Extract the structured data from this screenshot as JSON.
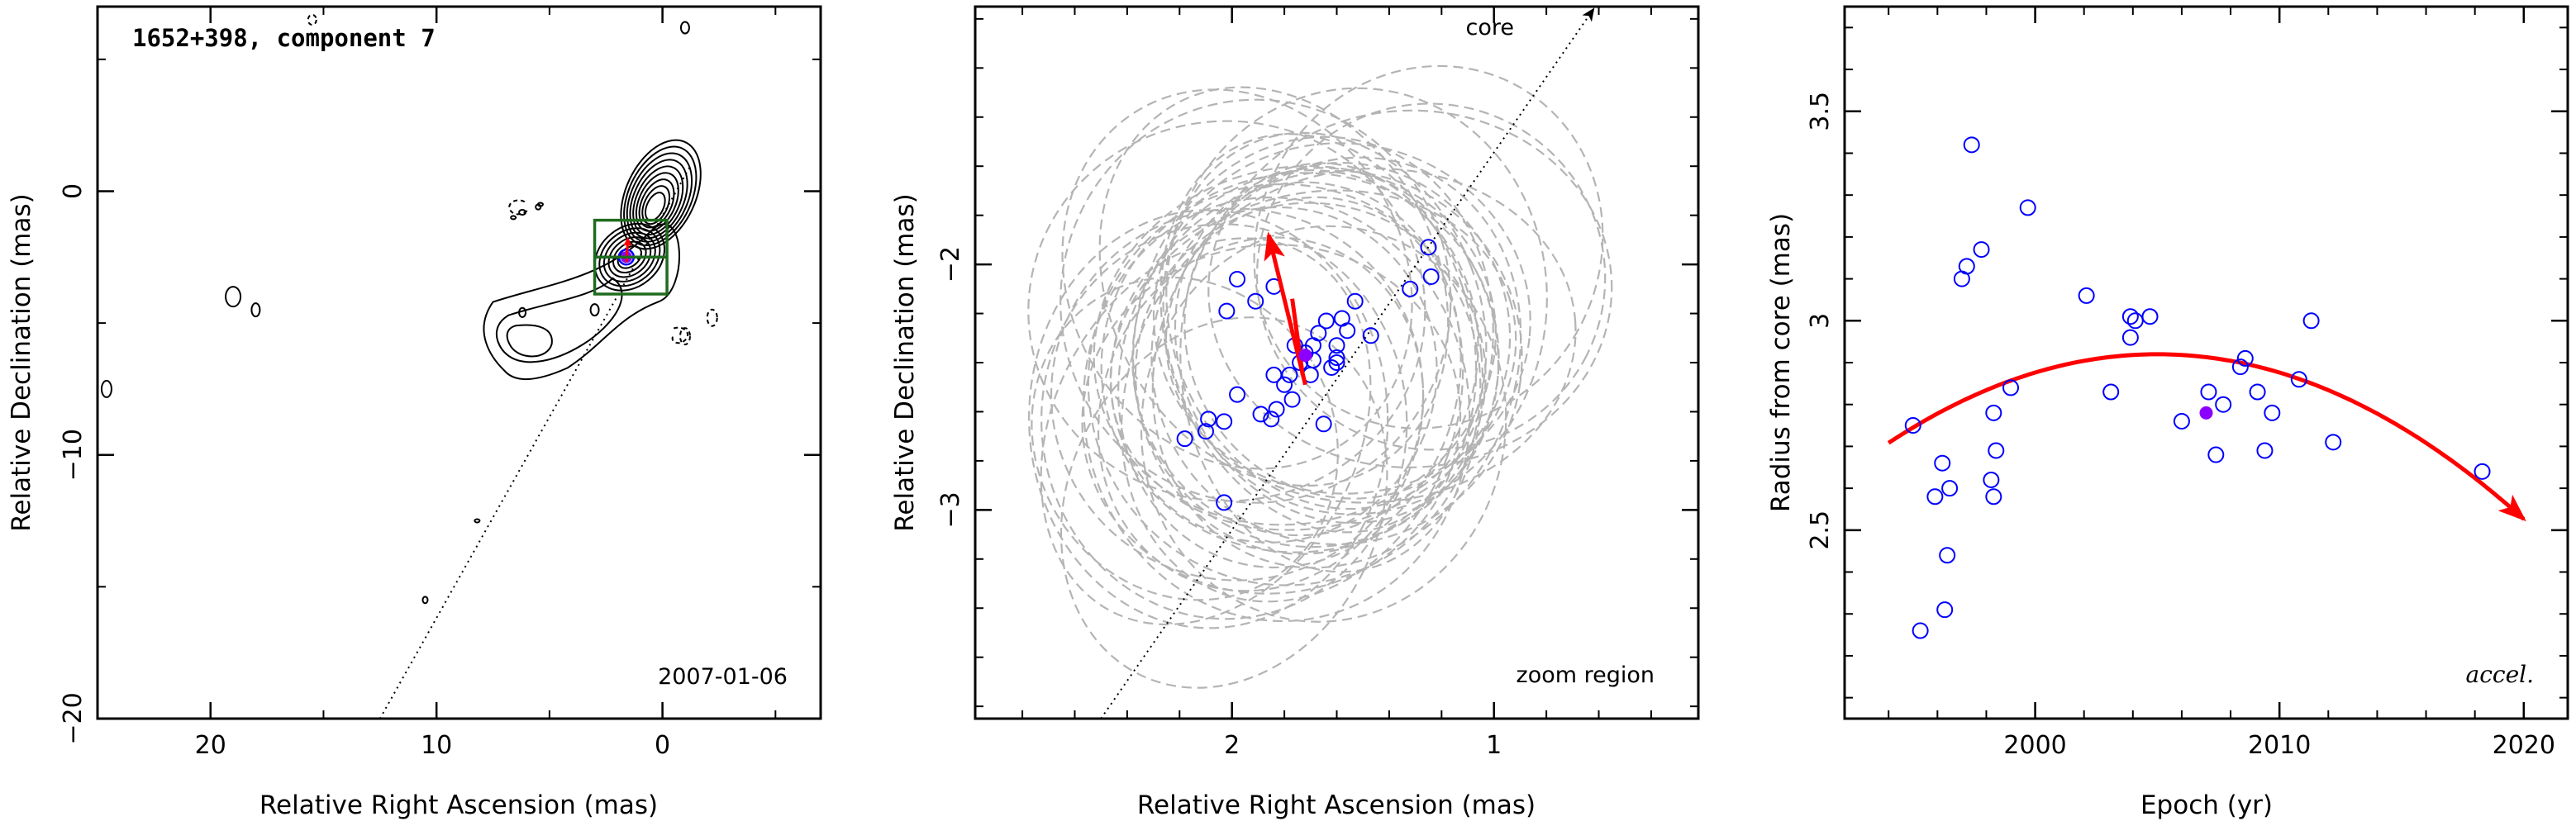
{
  "chart_data": [
    {
      "type": "scatter",
      "title": "1652+398, component 7",
      "annotation": "2007-01-06",
      "xlabel": "Relative Right Ascension (mas)",
      "ylabel": "Relative Declination (mas)",
      "xlim": [
        25,
        -7
      ],
      "ylim": [
        -20,
        7
      ],
      "xticks": [
        20,
        10,
        0
      ],
      "yticks": [
        0,
        -10,
        -20
      ],
      "x_tick_labels": [
        "20",
        "10",
        "0"
      ],
      "y_tick_labels": [
        "0",
        "−10",
        "−20"
      ],
      "zoom_box": {
        "x": [
          3.0,
          -0.2
        ],
        "y": [
          -3.9,
          -1.1
        ]
      },
      "core_direction_line": [
        [
          12.5,
          -20
        ],
        [
          -1.2,
          0.9
        ]
      ],
      "component_position": {
        "x": 1.6,
        "y": -2.5
      },
      "colors": {
        "contour": "#000000",
        "zoom_box": "#1e6b1e",
        "marker": "#0000ff",
        "vector": "#ff0000",
        "current_epoch": "#8b00ff"
      }
    },
    {
      "type": "scatter",
      "annotation_top": "core",
      "annotation_bottom": "zoom region",
      "xlabel": "Relative Right Ascension (mas)",
      "ylabel": "Relative Declination (mas)",
      "xlim": [
        2.98,
        0.22
      ],
      "ylim": [
        -3.85,
        -0.95
      ],
      "xticks": [
        2,
        1
      ],
      "yticks": [
        -2,
        -3
      ],
      "x_tick_labels": [
        "2",
        "1"
      ],
      "y_tick_labels": [
        "−2",
        "−3"
      ],
      "positions": [
        [
          2.18,
          -2.71
        ],
        [
          2.09,
          -2.63
        ],
        [
          2.1,
          -2.68
        ],
        [
          2.03,
          -2.64
        ],
        [
          2.03,
          -2.97
        ],
        [
          1.98,
          -2.53
        ],
        [
          1.89,
          -2.61
        ],
        [
          1.85,
          -2.63
        ],
        [
          1.84,
          -2.45
        ],
        [
          1.83,
          -2.59
        ],
        [
          1.77,
          -2.55
        ],
        [
          1.8,
          -2.49
        ],
        [
          1.78,
          -2.45
        ],
        [
          1.74,
          -2.4
        ],
        [
          1.72,
          -2.36
        ],
        [
          1.76,
          -2.33
        ],
        [
          1.7,
          -2.45
        ],
        [
          1.69,
          -2.39
        ],
        [
          1.69,
          -2.33
        ],
        [
          1.67,
          -2.28
        ],
        [
          1.65,
          -2.65
        ],
        [
          1.64,
          -2.23
        ],
        [
          1.6,
          -2.38
        ],
        [
          1.6,
          -2.33
        ],
        [
          1.58,
          -2.22
        ],
        [
          1.56,
          -2.27
        ],
        [
          1.53,
          -2.15
        ],
        [
          1.84,
          -2.09
        ],
        [
          1.91,
          -2.15
        ],
        [
          1.98,
          -2.06
        ],
        [
          2.02,
          -2.19
        ],
        [
          1.25,
          -1.93
        ],
        [
          1.32,
          -2.1
        ],
        [
          1.24,
          -2.05
        ],
        [
          1.47,
          -2.29
        ],
        [
          1.6,
          -2.4
        ],
        [
          1.62,
          -2.42
        ]
      ],
      "current_epoch_position": [
        1.72,
        -2.37
      ],
      "motion_vector": {
        "from": [
          1.72,
          -2.49
        ],
        "to": [
          1.86,
          -1.88
        ]
      },
      "secondary_vector": {
        "from": [
          1.73,
          -2.45
        ],
        "to": [
          1.77,
          -2.14
        ]
      },
      "colors": {
        "marker": "#0000ff",
        "vector": "#ff0000",
        "ellipses": "#b4b4b4",
        "current_epoch": "#8b00ff"
      }
    },
    {
      "type": "scatter",
      "annotation": "accel.",
      "xlabel": "Epoch (yr)",
      "ylabel": "Radius from core (mas)",
      "xlim": [
        1992.2,
        2021.8
      ],
      "ylim": [
        2.05,
        3.75
      ],
      "xticks": [
        2000,
        2010,
        2020
      ],
      "yticks": [
        2.5,
        3,
        3.5
      ],
      "x_tick_labels": [
        "2000",
        "2010",
        "2020"
      ],
      "y_tick_labels": [
        "2.5",
        "3",
        "3.5"
      ],
      "points": [
        [
          1995.0,
          2.75
        ],
        [
          1995.3,
          2.26
        ],
        [
          1995.9,
          2.58
        ],
        [
          1996.2,
          2.66
        ],
        [
          1996.3,
          2.31
        ],
        [
          1996.4,
          2.44
        ],
        [
          1996.5,
          2.6
        ],
        [
          1997.0,
          3.1
        ],
        [
          1997.2,
          3.13
        ],
        [
          1997.4,
          3.42
        ],
        [
          1997.8,
          3.17
        ],
        [
          1998.2,
          2.62
        ],
        [
          1998.3,
          2.58
        ],
        [
          1998.3,
          2.78
        ],
        [
          1998.4,
          2.69
        ],
        [
          1999.0,
          2.84
        ],
        [
          1999.7,
          3.27
        ],
        [
          2002.1,
          3.06
        ],
        [
          2003.1,
          2.83
        ],
        [
          2003.9,
          3.01
        ],
        [
          2003.9,
          2.96
        ],
        [
          2004.1,
          3.0
        ],
        [
          2004.7,
          3.01
        ],
        [
          2006.0,
          2.76
        ],
        [
          2007.1,
          2.83
        ],
        [
          2007.4,
          2.68
        ],
        [
          2007.7,
          2.8
        ],
        [
          2008.4,
          2.89
        ],
        [
          2008.6,
          2.91
        ],
        [
          2009.1,
          2.83
        ],
        [
          2009.4,
          2.69
        ],
        [
          2009.7,
          2.78
        ],
        [
          2010.8,
          2.86
        ],
        [
          2011.3,
          3.0
        ],
        [
          2012.2,
          2.71
        ],
        [
          2018.3,
          2.64
        ]
      ],
      "current_epoch_point": [
        2007.0,
        2.78
      ],
      "fit": {
        "kind": "quadratic",
        "vertex_x": 2005.0,
        "vertex_y": 2.92,
        "curvature": -0.00175,
        "x_start": 1994.0,
        "x_end": 2020.0
      },
      "colors": {
        "marker": "#0000ff",
        "fit": "#ff0000",
        "current_epoch": "#8b00ff"
      }
    }
  ]
}
